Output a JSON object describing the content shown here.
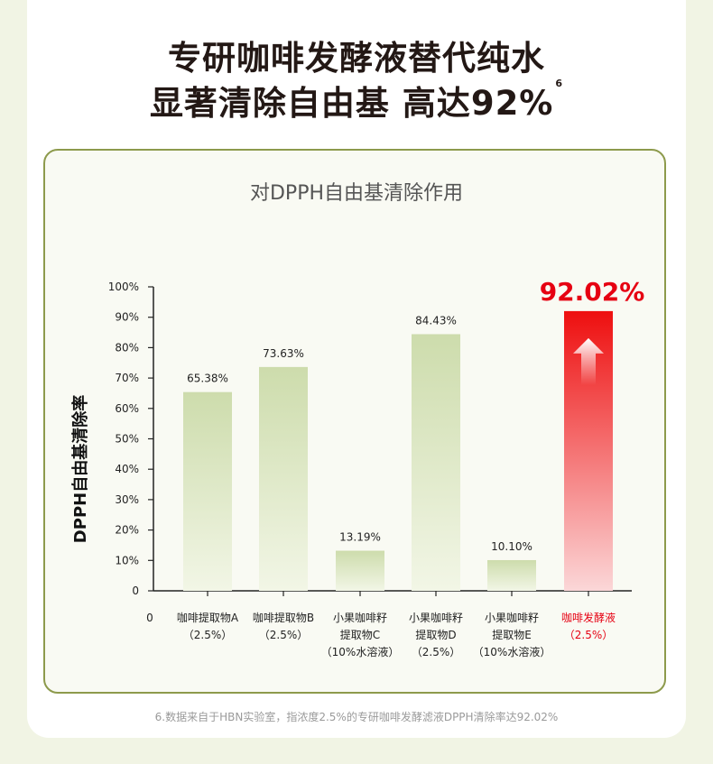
{
  "headline": {
    "line1": "专研咖啡发酵液替代纯水",
    "line2": "显著清除自由基 高达92%",
    "footnote_marker": "6"
  },
  "colors": {
    "bar_gradient_top": "#cddcac",
    "bar_gradient_bottom": "#f2f6e6",
    "highlight_top": "#ee0f0f",
    "highlight_bottom": "#fbd7d8",
    "highlight_text": "#e60012",
    "panel_border": "#8d9a4c"
  },
  "chart_data": {
    "type": "bar",
    "title": "对DPPH自由基清除作用",
    "ylabel": "DPPH自由基清除率",
    "ylim": [
      0,
      100
    ],
    "y_ticks": [
      "0",
      "10%",
      "20%",
      "30%",
      "40%",
      "50%",
      "60%",
      "70%",
      "80%",
      "90%",
      "100%"
    ],
    "x_origin_label": "0",
    "categories": [
      [
        "咖啡提取物A",
        "（2.5%）"
      ],
      [
        "咖啡提取物B",
        "（2.5%）"
      ],
      [
        "小果咖啡籽",
        "提取物C",
        "（10%水溶液）"
      ],
      [
        "小果咖啡籽",
        "提取物D",
        "（2.5%）"
      ],
      [
        "小果咖啡籽",
        "提取物E",
        "（10%水溶液）"
      ],
      [
        "咖啡发酵液",
        "（2.5%）"
      ]
    ],
    "values": [
      65.38,
      73.63,
      13.19,
      84.43,
      10.1,
      92.02
    ],
    "value_labels": [
      "65.38%",
      "73.63%",
      "13.19%",
      "84.43%",
      "10.10%",
      "92.02%"
    ],
    "highlight_index": 5,
    "grid": false
  },
  "footnote": "6.数据来自于HBN实验室，指浓度2.5%的专研咖啡发酵滤液DPPH清除率达92.02%"
}
